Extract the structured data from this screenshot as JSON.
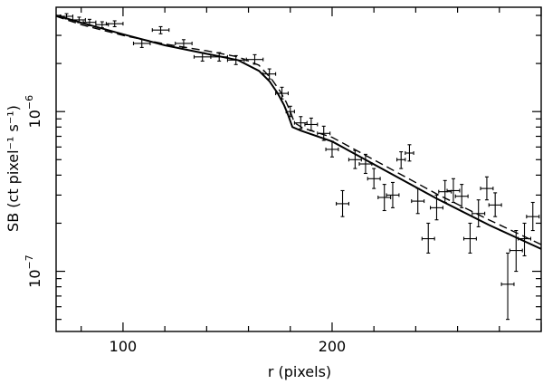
{
  "chart_data": {
    "type": "scatter",
    "title": "",
    "xlabel": "r (pixels)",
    "ylabel": "SB (ct pixel⁻¹ s⁻¹)",
    "xlim": [
      68,
      300
    ],
    "ylim": [
      4.2e-08,
      4.5e-06
    ],
    "yscale": "log",
    "grid": false,
    "x_ticks": [
      {
        "value": 100,
        "label": "100"
      },
      {
        "value": 200,
        "label": "200"
      }
    ],
    "y_ticks": [
      {
        "value": 1e-06,
        "base": "10",
        "exp": "−6"
      },
      {
        "value": 1e-07,
        "base": "10",
        "exp": "−7"
      }
    ],
    "series": [
      {
        "style": "errorbar-points",
        "points": [
          {
            "x": 73,
            "xerr": 3,
            "y": 3.95e-06,
            "ylo": 3.8e-06,
            "yhi": 4.1e-06
          },
          {
            "x": 79,
            "xerr": 3,
            "y": 3.75e-06,
            "ylo": 3.6e-06,
            "yhi": 3.9e-06
          },
          {
            "x": 84,
            "xerr": 3,
            "y": 3.62e-06,
            "ylo": 3.45e-06,
            "yhi": 3.78e-06
          },
          {
            "x": 90,
            "xerr": 3,
            "y": 3.5e-06,
            "ylo": 3.35e-06,
            "yhi": 3.65e-06
          },
          {
            "x": 96,
            "xerr": 4,
            "y": 3.55e-06,
            "ylo": 3.4e-06,
            "yhi": 3.7e-06
          },
          {
            "x": 109,
            "xerr": 4,
            "y": 2.67e-06,
            "ylo": 2.52e-06,
            "yhi": 2.83e-06
          },
          {
            "x": 118,
            "xerr": 4,
            "y": 3.24e-06,
            "ylo": 3.07e-06,
            "yhi": 3.4e-06
          },
          {
            "x": 129,
            "xerr": 4,
            "y": 2.67e-06,
            "ylo": 2.52e-06,
            "yhi": 2.82e-06
          },
          {
            "x": 138,
            "xerr": 4,
            "y": 2.2e-06,
            "ylo": 2.07e-06,
            "yhi": 2.34e-06
          },
          {
            "x": 146,
            "xerr": 4,
            "y": 2.2e-06,
            "ylo": 2.07e-06,
            "yhi": 2.34e-06
          },
          {
            "x": 154,
            "xerr": 4,
            "y": 2.1e-06,
            "ylo": 1.97e-06,
            "yhi": 2.24e-06
          },
          {
            "x": 163,
            "xerr": 4,
            "y": 2.12e-06,
            "ylo": 1.98e-06,
            "yhi": 2.27e-06
          },
          {
            "x": 170,
            "xerr": 3,
            "y": 1.72e-06,
            "ylo": 1.6e-06,
            "yhi": 1.85e-06
          },
          {
            "x": 176,
            "xerr": 3,
            "y": 1.3e-06,
            "ylo": 1.2e-06,
            "yhi": 1.42e-06
          },
          {
            "x": 180,
            "xerr": 2,
            "y": 1e-06,
            "ylo": 9.3e-07,
            "yhi": 1.08e-06
          },
          {
            "x": 185,
            "xerr": 3,
            "y": 8.5e-07,
            "ylo": 7.8e-07,
            "yhi": 9.3e-07
          },
          {
            "x": 190,
            "xerr": 3,
            "y": 8.3e-07,
            "ylo": 7.6e-07,
            "yhi": 9.1e-07
          },
          {
            "x": 196,
            "xerr": 3,
            "y": 7.3e-07,
            "ylo": 6.6e-07,
            "yhi": 8.1e-07
          },
          {
            "x": 200,
            "xerr": 3,
            "y": 5.8e-07,
            "ylo": 5.2e-07,
            "yhi": 6.5e-07
          },
          {
            "x": 205,
            "xerr": 3,
            "y": 2.65e-07,
            "ylo": 2.2e-07,
            "yhi": 3.2e-07
          },
          {
            "x": 211,
            "xerr": 3,
            "y": 5e-07,
            "ylo": 4.4e-07,
            "yhi": 5.7e-07
          },
          {
            "x": 216,
            "xerr": 3,
            "y": 4.7e-07,
            "ylo": 4.1e-07,
            "yhi": 5.4e-07
          },
          {
            "x": 220,
            "xerr": 3,
            "y": 3.8e-07,
            "ylo": 3.3e-07,
            "yhi": 4.4e-07
          },
          {
            "x": 225,
            "xerr": 3,
            "y": 2.9e-07,
            "ylo": 2.4e-07,
            "yhi": 3.5e-07
          },
          {
            "x": 229,
            "xerr": 3,
            "y": 3e-07,
            "ylo": 2.5e-07,
            "yhi": 3.6e-07
          },
          {
            "x": 233,
            "xerr": 2,
            "y": 5e-07,
            "ylo": 4.4e-07,
            "yhi": 5.6e-07
          },
          {
            "x": 237,
            "xerr": 2,
            "y": 5.5e-07,
            "ylo": 4.9e-07,
            "yhi": 6.2e-07
          },
          {
            "x": 241,
            "xerr": 3,
            "y": 2.75e-07,
            "ylo": 2.3e-07,
            "yhi": 3.3e-07
          },
          {
            "x": 246,
            "xerr": 3,
            "y": 1.6e-07,
            "ylo": 1.3e-07,
            "yhi": 2e-07
          },
          {
            "x": 250,
            "xerr": 3,
            "y": 2.5e-07,
            "ylo": 2.1e-07,
            "yhi": 3e-07
          },
          {
            "x": 254,
            "xerr": 3,
            "y": 3.15e-07,
            "ylo": 2.7e-07,
            "yhi": 3.7e-07
          },
          {
            "x": 258,
            "xerr": 3,
            "y": 3.2e-07,
            "ylo": 2.7e-07,
            "yhi": 3.8e-07
          },
          {
            "x": 262,
            "xerr": 3,
            "y": 2.95e-07,
            "ylo": 2.5e-07,
            "yhi": 3.5e-07
          },
          {
            "x": 266,
            "xerr": 3,
            "y": 1.6e-07,
            "ylo": 1.3e-07,
            "yhi": 2e-07
          },
          {
            "x": 270,
            "xerr": 3,
            "y": 2.3e-07,
            "ylo": 1.9e-07,
            "yhi": 2.8e-07
          },
          {
            "x": 274,
            "xerr": 3,
            "y": 3.3e-07,
            "ylo": 2.8e-07,
            "yhi": 3.9e-07
          },
          {
            "x": 278,
            "xerr": 3,
            "y": 2.6e-07,
            "ylo": 2.2e-07,
            "yhi": 3.1e-07
          },
          {
            "x": 284,
            "xerr": 3,
            "y": 8.3e-08,
            "ylo": 5e-08,
            "yhi": 1.3e-07
          },
          {
            "x": 288,
            "xerr": 3,
            "y": 1.35e-07,
            "ylo": 1e-07,
            "yhi": 1.8e-07
          },
          {
            "x": 292,
            "xerr": 3,
            "y": 1.6e-07,
            "ylo": 1.25e-07,
            "yhi": 2e-07
          },
          {
            "x": 296,
            "xerr": 3,
            "y": 2.2e-07,
            "ylo": 1.8e-07,
            "yhi": 2.7e-07
          }
        ]
      },
      {
        "style": "solid",
        "points": [
          [
            68,
            4e-06
          ],
          [
            80,
            3.6e-06
          ],
          [
            100,
            3.05e-06
          ],
          [
            120,
            2.6e-06
          ],
          [
            140,
            2.3e-06
          ],
          [
            155,
            2.1e-06
          ],
          [
            165,
            1.8e-06
          ],
          [
            170,
            1.55e-06
          ],
          [
            174,
            1.3e-06
          ],
          [
            177,
            1.1e-06
          ],
          [
            179,
            9.5e-07
          ],
          [
            181,
            8e-07
          ],
          [
            185,
            7.6e-07
          ],
          [
            200,
            6.5e-07
          ],
          [
            225,
            4.3e-07
          ],
          [
            250,
            2.85e-07
          ],
          [
            275,
            1.95e-07
          ],
          [
            300,
            1.38e-07
          ]
        ]
      },
      {
        "style": "dashed",
        "points": [
          [
            68,
            3.95e-06
          ],
          [
            80,
            3.5e-06
          ],
          [
            100,
            3e-06
          ],
          [
            120,
            2.65e-06
          ],
          [
            140,
            2.4e-06
          ],
          [
            155,
            2.2e-06
          ],
          [
            165,
            1.95e-06
          ],
          [
            171,
            1.6e-06
          ],
          [
            175,
            1.35e-06
          ],
          [
            178,
            1.15e-06
          ],
          [
            180,
            1e-06
          ],
          [
            182,
            8.5e-07
          ],
          [
            186,
            7.9e-07
          ],
          [
            200,
            6.9e-07
          ],
          [
            225,
            4.6e-07
          ],
          [
            250,
            3.05e-07
          ],
          [
            275,
            2.1e-07
          ],
          [
            300,
            1.47e-07
          ]
        ]
      }
    ]
  }
}
